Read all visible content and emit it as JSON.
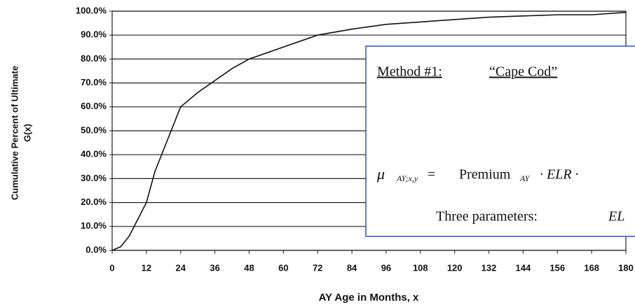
{
  "chart_data": {
    "type": "line",
    "y_label": [
      "Cumulative Percent of Ultimate",
      "G(x)"
    ],
    "x_label": "AY Age in Months, x",
    "x": [
      0,
      3,
      6,
      9,
      12,
      15,
      18,
      24,
      30,
      36,
      42,
      48,
      60,
      72,
      84,
      96,
      108,
      120,
      132,
      144,
      156,
      168,
      180
    ],
    "series": [
      {
        "name": "G(x)",
        "color": "#111111",
        "values": [
          0,
          1.5,
          6,
          13,
          20,
          33,
          42,
          60,
          66,
          71,
          76,
          80,
          85,
          90,
          92.5,
          94.5,
          95.5,
          96.5,
          97.5,
          98,
          98.5,
          98.5,
          99.5
        ]
      }
    ],
    "xlim": [
      0,
      180
    ],
    "xticks": [
      0,
      12,
      24,
      36,
      48,
      60,
      72,
      84,
      96,
      108,
      120,
      132,
      144,
      156,
      168,
      180
    ],
    "ylim": [
      0,
      100
    ],
    "yticks": [
      {
        "value": 0,
        "label": "0.0%"
      },
      {
        "value": 10,
        "label": "10.0%"
      },
      {
        "value": 20,
        "label": "20.0%"
      },
      {
        "value": 30,
        "label": "30.0%"
      },
      {
        "value": 40,
        "label": "40.0%"
      },
      {
        "value": 50,
        "label": "50.0%"
      },
      {
        "value": 60,
        "label": "60.0%"
      },
      {
        "value": 70,
        "label": "70.0%"
      },
      {
        "value": 80,
        "label": "80.0%"
      },
      {
        "value": 90,
        "label": "90.0%"
      },
      {
        "value": 100,
        "label": "100.0%"
      }
    ],
    "grid": true
  },
  "overlay": {
    "heading": "Method #1:",
    "name": "“Cape Cod”",
    "formula": [
      "μ",
      "AY;x,y",
      "=",
      "Premium",
      "AY",
      "· ELR ·",
      "["
    ],
    "footer": [
      "Three parameters:",
      "EL"
    ]
  }
}
